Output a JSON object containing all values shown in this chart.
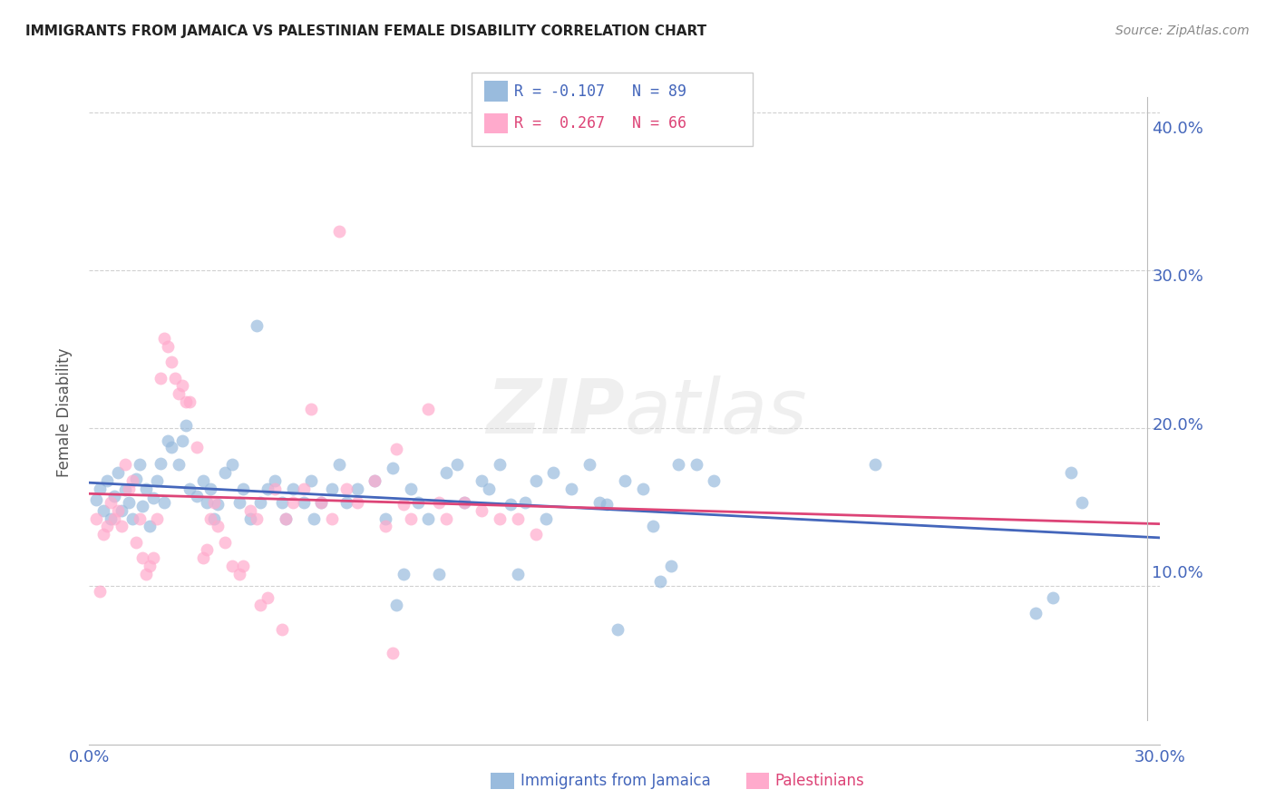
{
  "title": "IMMIGRANTS FROM JAMAICA VS PALESTINIAN FEMALE DISABILITY CORRELATION CHART",
  "source": "Source: ZipAtlas.com",
  "ylabel": "Female Disability",
  "xlim": [
    0.0,
    0.3
  ],
  "ylim": [
    0.0,
    0.42
  ],
  "ytick_positions": [
    0.1,
    0.2,
    0.3,
    0.4
  ],
  "ytick_labels": [
    "10.0%",
    "20.0%",
    "30.0%",
    "40.0%"
  ],
  "xtick_positions": [
    0.0,
    0.05,
    0.1,
    0.15,
    0.2,
    0.25,
    0.3
  ],
  "xtick_labels": [
    "0.0%",
    "",
    "",
    "",
    "",
    "",
    "30.0%"
  ],
  "blue_color": "#99BBDD",
  "pink_color": "#FFAACC",
  "blue_line_color": "#4466BB",
  "pink_line_color": "#DD4477",
  "blue_dash_color": "#AACCEE",
  "pink_dash_color": "#FFBBCC",
  "watermark_color": "#DDDDDD",
  "blue_scatter": [
    [
      0.002,
      0.155
    ],
    [
      0.003,
      0.162
    ],
    [
      0.004,
      0.148
    ],
    [
      0.005,
      0.167
    ],
    [
      0.006,
      0.143
    ],
    [
      0.007,
      0.157
    ],
    [
      0.008,
      0.172
    ],
    [
      0.009,
      0.148
    ],
    [
      0.01,
      0.161
    ],
    [
      0.011,
      0.153
    ],
    [
      0.012,
      0.143
    ],
    [
      0.013,
      0.168
    ],
    [
      0.014,
      0.177
    ],
    [
      0.015,
      0.151
    ],
    [
      0.016,
      0.162
    ],
    [
      0.017,
      0.138
    ],
    [
      0.018,
      0.156
    ],
    [
      0.019,
      0.167
    ],
    [
      0.02,
      0.178
    ],
    [
      0.021,
      0.153
    ],
    [
      0.022,
      0.192
    ],
    [
      0.023,
      0.188
    ],
    [
      0.025,
      0.177
    ],
    [
      0.026,
      0.192
    ],
    [
      0.027,
      0.202
    ],
    [
      0.028,
      0.162
    ],
    [
      0.03,
      0.157
    ],
    [
      0.032,
      0.167
    ],
    [
      0.033,
      0.153
    ],
    [
      0.034,
      0.162
    ],
    [
      0.035,
      0.143
    ],
    [
      0.036,
      0.152
    ],
    [
      0.038,
      0.172
    ],
    [
      0.04,
      0.177
    ],
    [
      0.042,
      0.153
    ],
    [
      0.043,
      0.162
    ],
    [
      0.045,
      0.143
    ],
    [
      0.047,
      0.265
    ],
    [
      0.048,
      0.153
    ],
    [
      0.05,
      0.162
    ],
    [
      0.052,
      0.167
    ],
    [
      0.054,
      0.153
    ],
    [
      0.055,
      0.143
    ],
    [
      0.057,
      0.162
    ],
    [
      0.06,
      0.153
    ],
    [
      0.062,
      0.167
    ],
    [
      0.063,
      0.143
    ],
    [
      0.065,
      0.153
    ],
    [
      0.068,
      0.162
    ],
    [
      0.07,
      0.177
    ],
    [
      0.072,
      0.153
    ],
    [
      0.075,
      0.162
    ],
    [
      0.08,
      0.167
    ],
    [
      0.083,
      0.143
    ],
    [
      0.085,
      0.175
    ],
    [
      0.086,
      0.088
    ],
    [
      0.088,
      0.108
    ],
    [
      0.09,
      0.162
    ],
    [
      0.092,
      0.153
    ],
    [
      0.095,
      0.143
    ],
    [
      0.098,
      0.108
    ],
    [
      0.1,
      0.172
    ],
    [
      0.103,
      0.177
    ],
    [
      0.105,
      0.153
    ],
    [
      0.11,
      0.167
    ],
    [
      0.112,
      0.162
    ],
    [
      0.115,
      0.177
    ],
    [
      0.118,
      0.152
    ],
    [
      0.12,
      0.108
    ],
    [
      0.122,
      0.153
    ],
    [
      0.125,
      0.167
    ],
    [
      0.128,
      0.143
    ],
    [
      0.13,
      0.172
    ],
    [
      0.135,
      0.162
    ],
    [
      0.14,
      0.177
    ],
    [
      0.143,
      0.153
    ],
    [
      0.145,
      0.152
    ],
    [
      0.148,
      0.073
    ],
    [
      0.15,
      0.167
    ],
    [
      0.155,
      0.162
    ],
    [
      0.158,
      0.138
    ],
    [
      0.16,
      0.103
    ],
    [
      0.163,
      0.113
    ],
    [
      0.165,
      0.177
    ],
    [
      0.17,
      0.177
    ],
    [
      0.175,
      0.167
    ],
    [
      0.22,
      0.177
    ],
    [
      0.265,
      0.083
    ],
    [
      0.27,
      0.093
    ],
    [
      0.275,
      0.172
    ],
    [
      0.278,
      0.153
    ]
  ],
  "pink_scatter": [
    [
      0.002,
      0.143
    ],
    [
      0.003,
      0.097
    ],
    [
      0.004,
      0.133
    ],
    [
      0.005,
      0.138
    ],
    [
      0.006,
      0.153
    ],
    [
      0.007,
      0.143
    ],
    [
      0.008,
      0.148
    ],
    [
      0.009,
      0.138
    ],
    [
      0.01,
      0.177
    ],
    [
      0.011,
      0.162
    ],
    [
      0.012,
      0.167
    ],
    [
      0.013,
      0.128
    ],
    [
      0.014,
      0.143
    ],
    [
      0.015,
      0.118
    ],
    [
      0.016,
      0.108
    ],
    [
      0.017,
      0.113
    ],
    [
      0.018,
      0.118
    ],
    [
      0.019,
      0.143
    ],
    [
      0.02,
      0.232
    ],
    [
      0.021,
      0.257
    ],
    [
      0.022,
      0.252
    ],
    [
      0.023,
      0.242
    ],
    [
      0.024,
      0.232
    ],
    [
      0.025,
      0.222
    ],
    [
      0.026,
      0.227
    ],
    [
      0.027,
      0.217
    ],
    [
      0.028,
      0.217
    ],
    [
      0.03,
      0.188
    ],
    [
      0.032,
      0.118
    ],
    [
      0.033,
      0.123
    ],
    [
      0.034,
      0.143
    ],
    [
      0.035,
      0.153
    ],
    [
      0.036,
      0.138
    ],
    [
      0.038,
      0.128
    ],
    [
      0.04,
      0.113
    ],
    [
      0.042,
      0.108
    ],
    [
      0.043,
      0.113
    ],
    [
      0.045,
      0.148
    ],
    [
      0.047,
      0.143
    ],
    [
      0.048,
      0.088
    ],
    [
      0.05,
      0.093
    ],
    [
      0.052,
      0.162
    ],
    [
      0.054,
      0.073
    ],
    [
      0.055,
      0.143
    ],
    [
      0.057,
      0.153
    ],
    [
      0.06,
      0.162
    ],
    [
      0.062,
      0.212
    ],
    [
      0.065,
      0.153
    ],
    [
      0.068,
      0.143
    ],
    [
      0.07,
      0.325
    ],
    [
      0.072,
      0.162
    ],
    [
      0.075,
      0.153
    ],
    [
      0.08,
      0.167
    ],
    [
      0.083,
      0.138
    ],
    [
      0.085,
      0.058
    ],
    [
      0.086,
      0.187
    ],
    [
      0.088,
      0.152
    ],
    [
      0.09,
      0.143
    ],
    [
      0.095,
      0.212
    ],
    [
      0.098,
      0.153
    ],
    [
      0.1,
      0.143
    ],
    [
      0.105,
      0.153
    ],
    [
      0.11,
      0.148
    ],
    [
      0.115,
      0.143
    ],
    [
      0.12,
      0.143
    ],
    [
      0.125,
      0.133
    ]
  ]
}
